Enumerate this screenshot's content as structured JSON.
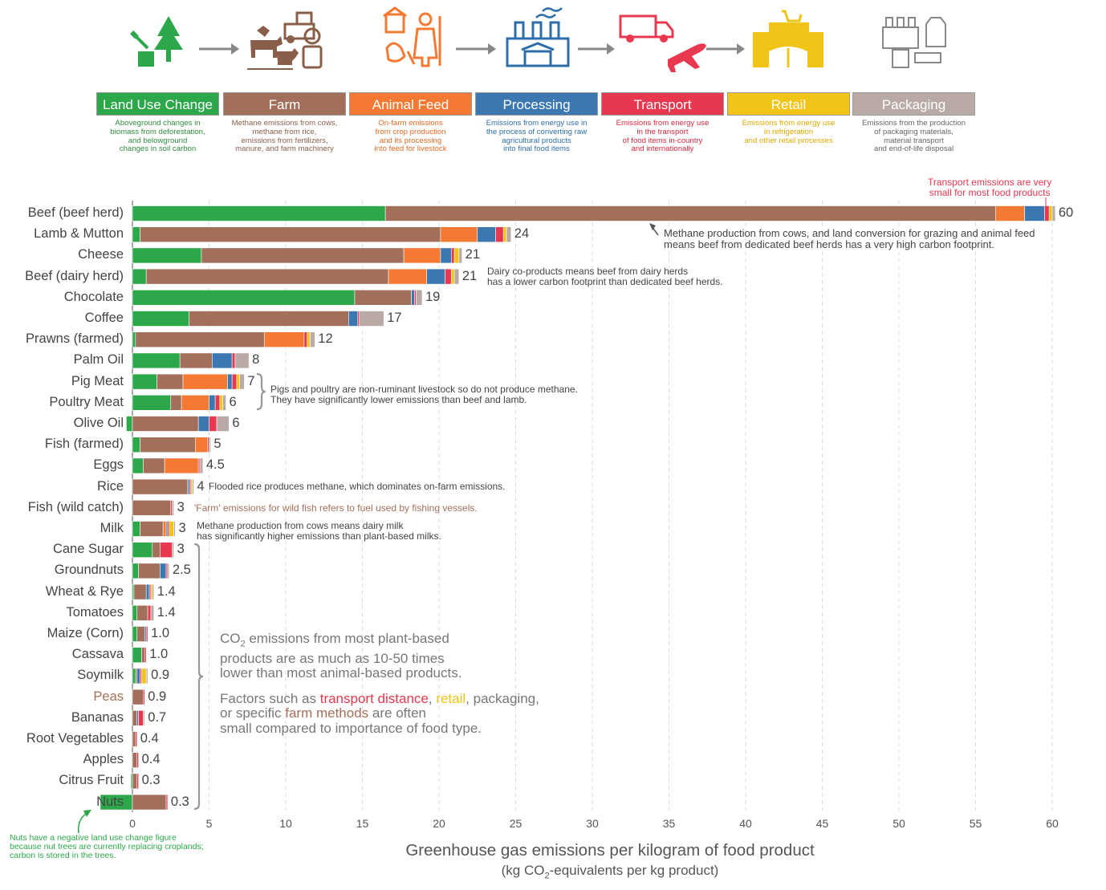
{
  "stages": [
    {
      "name": "Land Use Change",
      "color": "#2ca84a",
      "text_color": "#2e8b3e",
      "desc": [
        "Aboveground changes in",
        "biomass from deforestation,",
        "and belowground",
        "changes in soil carbon"
      ],
      "icon": "tree-stump-icon"
    },
    {
      "name": "Farm",
      "color": "#a2705a",
      "text_color": "#8a5f4a",
      "desc": [
        "Methane emissions from cows,",
        "methane from rice,",
        "emissions from fertilizers,",
        "manure, and farm machinery"
      ],
      "icon": "farm-animals-tractor-icon"
    },
    {
      "name": "Animal Feed",
      "color": "#f47a33",
      "text_color": "#e46a23",
      "desc": [
        "On-farm emissions",
        "from crop production",
        "and its processing",
        "into feed for livestock"
      ],
      "icon": "farmer-feed-icon"
    },
    {
      "name": "Processing",
      "color": "#3b78b1",
      "text_color": "#2d6eaa",
      "desc": [
        "Emissions from energy use in",
        "the process of converting raw",
        "agricultural products",
        "into final food items"
      ],
      "icon": "factory-icon"
    },
    {
      "name": "Transport",
      "color": "#e8384f",
      "text_color": "#d8283f",
      "desc": [
        "Emissions from energy use",
        "in the transport",
        "of food items in-country",
        "and internationally"
      ],
      "icon": "truck-plane-icon"
    },
    {
      "name": "Retail",
      "color": "#f2c418",
      "text_color": "#e0a800",
      "desc": [
        "Emissions from energy use",
        "in refrigeration",
        "and other retail processes"
      ],
      "icon": "shop-icon"
    },
    {
      "name": "Packaging",
      "color": "#b9aaa5",
      "text_color": "#666666",
      "desc": [
        "Emissions from the production",
        "of packaging materials,",
        "material transport",
        "and end-of-life disposal"
      ],
      "icon": "packaging-icon"
    }
  ],
  "chart_data": {
    "type": "bar",
    "orientation": "horizontal",
    "stacked": true,
    "xlabel": "Greenhouse gas emissions per kilogram of food product",
    "xlabel_sub": "(kg CO2-equivalents per kg product)",
    "xlim": [
      0,
      60
    ],
    "xticks": [
      0,
      5,
      10,
      15,
      20,
      25,
      30,
      35,
      40,
      45,
      50,
      55,
      60
    ],
    "series_names": [
      "Land Use Change",
      "Farm",
      "Animal Feed",
      "Processing",
      "Transport",
      "Retail",
      "Packaging"
    ],
    "rows": [
      {
        "food": "Beef (beef herd)",
        "total_label": "60",
        "values": [
          16.5,
          39.8,
          1.9,
          1.3,
          0.3,
          0.2,
          0.2
        ]
      },
      {
        "food": "Lamb & Mutton",
        "total_label": "24",
        "values": [
          0.5,
          19.6,
          2.4,
          1.2,
          0.5,
          0.2,
          0.3
        ]
      },
      {
        "food": "Cheese",
        "total_label": "21",
        "values": [
          4.5,
          13.2,
          2.4,
          0.7,
          0.2,
          0.3,
          0.2
        ]
      },
      {
        "food": "Beef (dairy herd)",
        "total_label": "21",
        "values": [
          0.9,
          15.8,
          2.5,
          1.2,
          0.4,
          0.2,
          0.3
        ]
      },
      {
        "food": "Chocolate",
        "total_label": "19",
        "values": [
          14.5,
          3.7,
          0.0,
          0.2,
          0.1,
          0.0,
          0.4
        ]
      },
      {
        "food": "Coffee",
        "total_label": "17",
        "values": [
          3.7,
          10.4,
          0.0,
          0.6,
          0.1,
          0.0,
          1.6
        ]
      },
      {
        "food": "Prawns (farmed)",
        "total_label": "12",
        "values": [
          0.2,
          8.4,
          2.6,
          0.0,
          0.2,
          0.2,
          0.3
        ]
      },
      {
        "food": "Palm Oil",
        "total_label": "8",
        "values": [
          3.1,
          2.1,
          0.0,
          1.3,
          0.2,
          0.0,
          0.9
        ]
      },
      {
        "food": "Pig Meat",
        "total_label": "7",
        "values": [
          1.6,
          1.7,
          2.9,
          0.3,
          0.3,
          0.2,
          0.3
        ]
      },
      {
        "food": "Poultry Meat",
        "total_label": "6",
        "values": [
          2.5,
          0.7,
          1.8,
          0.4,
          0.3,
          0.2,
          0.2
        ]
      },
      {
        "food": "Olive Oil",
        "total_label": "6",
        "values": [
          -0.4,
          4.3,
          0.0,
          0.7,
          0.5,
          0.0,
          0.8
        ]
      },
      {
        "food": "Fish (farmed)",
        "total_label": "5",
        "values": [
          0.5,
          3.6,
          0.8,
          0.0,
          0.1,
          0.0,
          0.1
        ]
      },
      {
        "food": "Eggs",
        "total_label": "4.5",
        "values": [
          0.7,
          1.4,
          2.2,
          0.0,
          0.1,
          0.0,
          0.2
        ]
      },
      {
        "food": "Rice",
        "total_label": "4",
        "values": [
          0.0,
          3.6,
          0.0,
          0.1,
          0.1,
          0.1,
          0.1
        ]
      },
      {
        "food": "Fish (wild catch)",
        "total_label": "3",
        "values": [
          0.0,
          2.5,
          0.0,
          0.0,
          0.1,
          0.0,
          0.1
        ]
      },
      {
        "food": "Milk",
        "total_label": "3",
        "values": [
          0.5,
          1.5,
          0.2,
          0.1,
          0.1,
          0.3,
          0.1
        ]
      },
      {
        "food": "Cane Sugar",
        "total_label": "3",
        "values": [
          1.3,
          0.5,
          0.0,
          0.0,
          0.8,
          0.0,
          0.1
        ]
      },
      {
        "food": "Groundnuts",
        "total_label": "2.5",
        "values": [
          0.4,
          1.4,
          0.0,
          0.4,
          0.1,
          0.0,
          0.1
        ]
      },
      {
        "food": "Wheat & Rye",
        "total_label": "1.4",
        "values": [
          0.1,
          0.8,
          0.0,
          0.2,
          0.1,
          0.1,
          0.1
        ]
      },
      {
        "food": "Tomatoes",
        "total_label": "1.4",
        "values": [
          0.3,
          0.7,
          0.0,
          0.0,
          0.2,
          0.0,
          0.2
        ]
      },
      {
        "food": "Maize (Corn)",
        "total_label": "1.0",
        "values": [
          0.3,
          0.5,
          0.0,
          0.1,
          0.1,
          0.0,
          0.0
        ]
      },
      {
        "food": "Cassava",
        "total_label": "1.0",
        "values": [
          0.6,
          0.2,
          0.0,
          0.0,
          0.1,
          0.0,
          0.0
        ]
      },
      {
        "food": "Soymilk",
        "total_label": "0.9",
        "values": [
          0.2,
          0.1,
          0.0,
          0.2,
          0.1,
          0.3,
          0.1
        ]
      },
      {
        "food": "Peas",
        "total_label": "0.9",
        "values": [
          0.0,
          0.7,
          0.0,
          0.0,
          0.1,
          0.0,
          0.0
        ]
      },
      {
        "food": "Bananas",
        "total_label": "0.7",
        "values": [
          0.0,
          0.3,
          0.0,
          0.1,
          0.3,
          0.0,
          0.1
        ]
      },
      {
        "food": "Root Vegetables",
        "total_label": "0.4",
        "values": [
          0.0,
          0.2,
          0.0,
          0.0,
          0.1,
          0.0,
          0.0
        ]
      },
      {
        "food": "Apples",
        "total_label": "0.4",
        "values": [
          0.0,
          0.3,
          0.0,
          0.0,
          0.1,
          0.0,
          0.0
        ]
      },
      {
        "food": "Citrus Fruit",
        "total_label": "0.3",
        "values": [
          -0.1,
          0.3,
          0.0,
          0.0,
          0.1,
          0.0,
          0.0
        ]
      },
      {
        "food": "Nuts",
        "total_label": "0.3",
        "values": [
          -2.1,
          2.2,
          0.0,
          0.0,
          0.1,
          0.0,
          0.0
        ]
      }
    ]
  },
  "annotations": {
    "transport_top": [
      "Transport emissions are very",
      "small for most food products"
    ],
    "beef_herd": [
      "Methane production from cows, and land conversion for grazing and animal feed",
      "means beef from dedicated beef herds has a very high carbon footprint."
    ],
    "dairy_herd": [
      "Dairy co-products means beef from dairy herds",
      "has a lower carbon footprint than dedicated beef herds."
    ],
    "pigs_poultry": [
      "Pigs and poultry are non-ruminant livestock so do not produce methane.",
      "They have significantly lower emissions than beef and lamb."
    ],
    "rice": "Flooded rice produces methane, which dominates on-farm emissions.",
    "wild_fish": "'Farm' emissions for wild fish refers to fuel used by fishing vessels.",
    "milk": [
      "Methane production from cows means dairy milk",
      "has significantly higher emissions than plant-based milks."
    ],
    "nuts": [
      "Nuts have a negative land use change figure",
      "because nut trees are currently replacing croplands;",
      "carbon is stored in the trees."
    ],
    "plant_note_1": [
      "CO",
      "2",
      " emissions from most plant-based"
    ],
    "plant_note_2": "products are as much as 10-50 times",
    "plant_note_3": "lower than most animal-based products.",
    "plant_note_4a": "Factors such as ",
    "plant_note_4b": "transport distance",
    "plant_note_4c": ", ",
    "plant_note_4d": "retail",
    "plant_note_4e": ", packaging,",
    "plant_note_5a": "or specific ",
    "plant_note_5b": "farm methods",
    "plant_note_5c": " are often",
    "plant_note_6": "small compared to importance of food type."
  },
  "axis": {
    "title": "Greenhouse gas emissions per kilogram of food product",
    "sub_a": "(kg CO",
    "sub_b": "2",
    "sub_c": "-equivalents per kg product)"
  }
}
